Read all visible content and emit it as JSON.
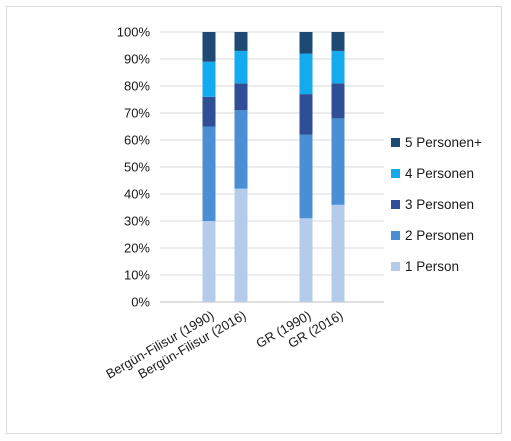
{
  "chart_data": {
    "type": "bar",
    "stacked": true,
    "categories": [
      "Bergün-Filisur (1990)",
      "Bergün-Filisur (2016)",
      "GR (1990)",
      "GR (2016)"
    ],
    "series": [
      {
        "name": "1 Person",
        "color": "#b4cbea",
        "values": [
          30,
          42,
          31,
          36
        ]
      },
      {
        "name": "2 Personen",
        "color": "#4a8fd6",
        "values": [
          35,
          29,
          31,
          32
        ]
      },
      {
        "name": "3 Personen",
        "color": "#2e4f96",
        "values": [
          11,
          10,
          15,
          13
        ]
      },
      {
        "name": "4 Personen",
        "color": "#14aaf0",
        "values": [
          13,
          12,
          15,
          12
        ]
      },
      {
        "name": "5 Personen+",
        "color": "#1c4a73",
        "values": [
          11,
          7,
          8,
          7
        ]
      }
    ],
    "ylim": [
      0,
      100
    ],
    "yticks": [
      "0%",
      "10%",
      "20%",
      "30%",
      "40%",
      "50%",
      "60%",
      "70%",
      "80%",
      "90%",
      "100%"
    ],
    "grid": true,
    "legend_position": "right",
    "legend_order": [
      "5 Personen+",
      "4 Personen",
      "3 Personen",
      "2 Personen",
      "1 Person"
    ]
  }
}
